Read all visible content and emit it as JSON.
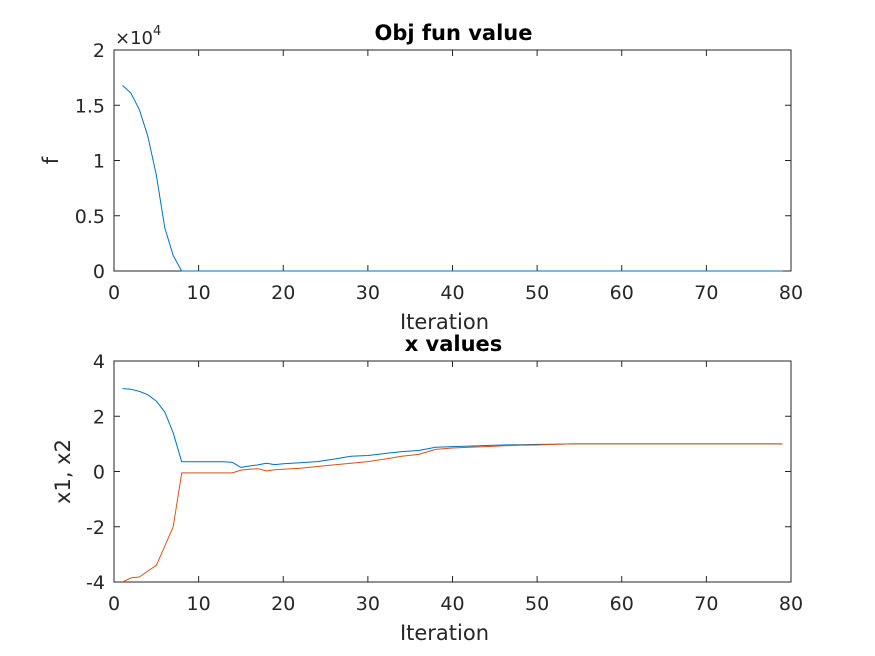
{
  "chart_data": [
    {
      "type": "line",
      "title": "Obj fun value",
      "xlabel": "Iteration",
      "ylabel": "f",
      "xlim": [
        0,
        80
      ],
      "ylim": [
        0,
        2
      ],
      "y_exponent": {
        "base": "×10",
        "power": "4"
      },
      "xticks": [
        0,
        10,
        20,
        30,
        40,
        50,
        60,
        70,
        80
      ],
      "yticks": [
        0,
        0.5,
        1,
        1.5,
        2
      ],
      "ytick_labels": [
        "0",
        "0.5",
        "1",
        "1.5",
        "2"
      ],
      "grid": false,
      "series": [
        {
          "color": "#0072BD",
          "x": [
            1,
            2,
            3,
            4,
            5,
            6,
            7,
            8,
            9,
            10,
            20,
            30,
            40,
            50,
            60,
            70,
            79
          ],
          "y": [
            1.68,
            1.61,
            1.46,
            1.22,
            0.87,
            0.39,
            0.14,
            0.0,
            0.0,
            0.0,
            0.0,
            0.0,
            0.0,
            0.0,
            0.0,
            0.0,
            0.0
          ]
        }
      ]
    },
    {
      "type": "line",
      "title": "x values",
      "xlabel": "Iteration",
      "ylabel": "x1, x2",
      "xlim": [
        0,
        80
      ],
      "ylim": [
        -4,
        4
      ],
      "xticks": [
        0,
        10,
        20,
        30,
        40,
        50,
        60,
        70,
        80
      ],
      "yticks": [
        -4,
        -2,
        0,
        2,
        4
      ],
      "ytick_labels": [
        "-4",
        "-2",
        "0",
        "2",
        "4"
      ],
      "grid": false,
      "series": [
        {
          "color": "#0072BD",
          "x": [
            1,
            2,
            3,
            4,
            5,
            6,
            7,
            8,
            9,
            10,
            11,
            12,
            13,
            14,
            15,
            16,
            17,
            18,
            19,
            20,
            22,
            24,
            26,
            28,
            30,
            32,
            34,
            36,
            38,
            40,
            42,
            44,
            46,
            48,
            50,
            52,
            54,
            56,
            60,
            65,
            70,
            75,
            79
          ],
          "y": [
            3.0,
            2.98,
            2.9,
            2.78,
            2.55,
            2.15,
            1.4,
            0.35,
            0.35,
            0.35,
            0.35,
            0.35,
            0.35,
            0.33,
            0.15,
            0.2,
            0.24,
            0.3,
            0.25,
            0.28,
            0.32,
            0.36,
            0.45,
            0.55,
            0.58,
            0.65,
            0.72,
            0.76,
            0.88,
            0.9,
            0.92,
            0.94,
            0.96,
            0.97,
            0.98,
            0.99,
            1.0,
            1.0,
            1.0,
            1.0,
            1.0,
            1.0,
            1.0
          ]
        },
        {
          "color": "#D95319",
          "x": [
            1,
            2,
            3,
            4,
            5,
            6,
            7,
            8,
            9,
            10,
            11,
            12,
            13,
            14,
            15,
            16,
            17,
            18,
            19,
            20,
            22,
            24,
            26,
            28,
            30,
            32,
            34,
            36,
            38,
            40,
            42,
            44,
            46,
            48,
            50,
            52,
            54,
            56,
            60,
            65,
            70,
            75,
            79
          ],
          "y": [
            -4.0,
            -3.85,
            -3.82,
            -3.6,
            -3.4,
            -2.7,
            -2.0,
            -0.05,
            -0.05,
            -0.05,
            -0.05,
            -0.05,
            -0.05,
            -0.05,
            0.05,
            0.08,
            0.1,
            0.02,
            0.06,
            0.08,
            0.12,
            0.18,
            0.24,
            0.3,
            0.36,
            0.45,
            0.55,
            0.62,
            0.8,
            0.85,
            0.88,
            0.9,
            0.93,
            0.95,
            0.96,
            0.98,
            1.0,
            1.0,
            1.0,
            1.0,
            1.0,
            1.0,
            1.0
          ]
        }
      ]
    }
  ]
}
